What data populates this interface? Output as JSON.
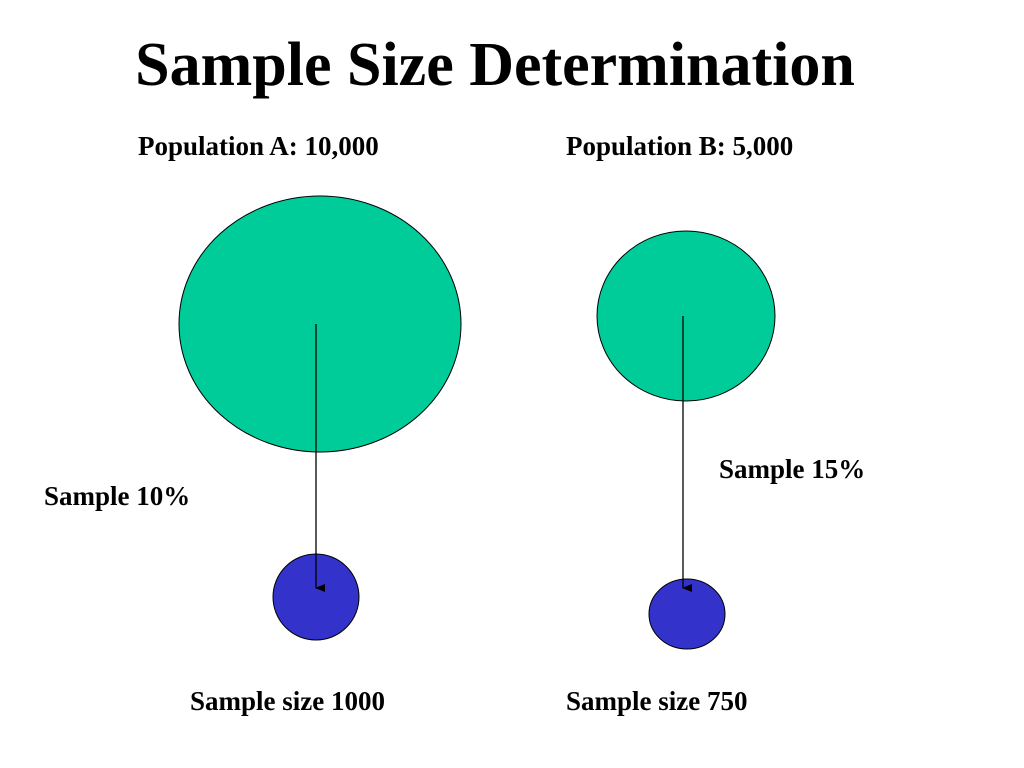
{
  "slide": {
    "title": "Sample Size Determination"
  },
  "populations": [
    {
      "label": "Population A: 10,000",
      "population_size": 10000,
      "sample_rate_label": "Sample 10%",
      "sample_rate": 0.1,
      "sample_size_label": "Sample size 1000",
      "sample_size": 1000
    },
    {
      "label": "Population B: 5,000",
      "population_size": 5000,
      "sample_rate_label": "Sample 15%",
      "sample_rate": 0.15,
      "sample_size_label": "Sample size 750",
      "sample_size": 750
    }
  ],
  "colors": {
    "population_fill": "#00cc99",
    "sample_fill": "#3333cc",
    "outline": "#000000",
    "arrow": "#000000",
    "background": "#ffffff"
  }
}
